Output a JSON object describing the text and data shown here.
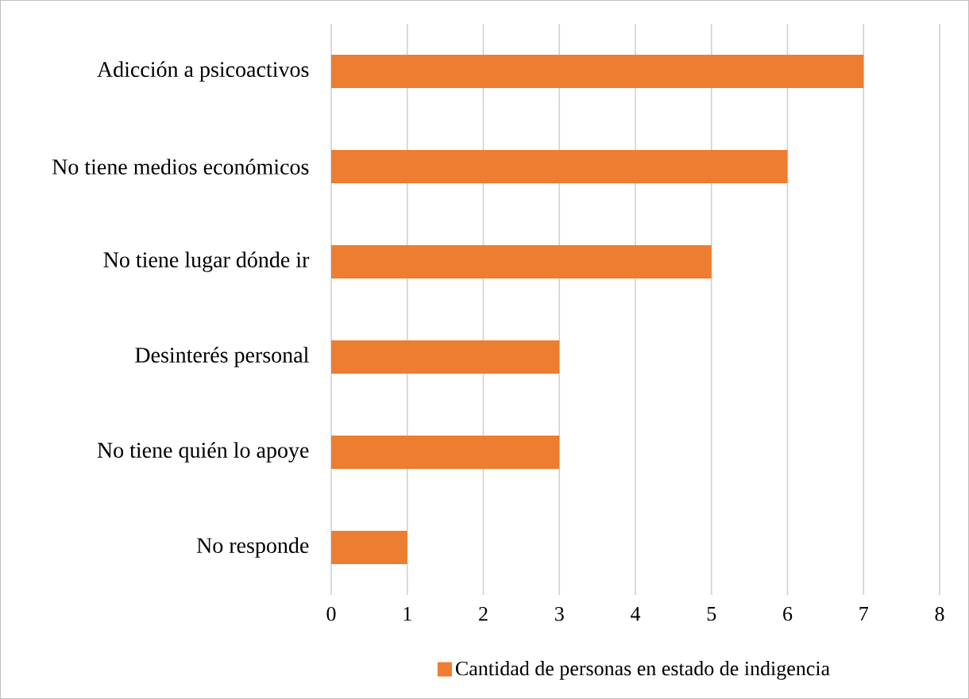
{
  "chart_data": {
    "type": "bar",
    "orientation": "horizontal",
    "categories": [
      "Adicción a psicoactivos",
      "No tiene medios económicos",
      "No tiene lugar dónde ir",
      "Desinterés personal",
      "No tiene quién lo apoye",
      "No responde"
    ],
    "series": [
      {
        "name": "Cantidad de personas en estado de indigencia",
        "color": "#ed7d31",
        "values": [
          7,
          6,
          5,
          3,
          3,
          1
        ]
      }
    ],
    "xlim": [
      0,
      8
    ],
    "xticks": [
      0,
      1,
      2,
      3,
      4,
      5,
      6,
      7,
      8
    ],
    "grid": "x",
    "legend": "bottom"
  }
}
